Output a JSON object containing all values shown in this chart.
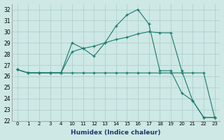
{
  "xlabel": "Humidex (Indice chaleur)",
  "background_color": "#cde8e5",
  "grid_color": "#aaccca",
  "line_color": "#1a7a6e",
  "ylim": [
    22,
    32.5
  ],
  "ytick_vals": [
    22,
    23,
    24,
    25,
    26,
    27,
    28,
    29,
    30,
    31,
    32
  ],
  "xtick_labels": [
    "0",
    "1",
    "2",
    "3",
    "4",
    "10",
    "11",
    "12",
    "13",
    "14",
    "15",
    "16",
    "17",
    "18",
    "19",
    "20",
    "21",
    "22",
    "23"
  ],
  "series": [
    {
      "xi": [
        0,
        1,
        2,
        3,
        4,
        5,
        6,
        7,
        8,
        9,
        10,
        11,
        12,
        13,
        14,
        15,
        16,
        17,
        18
      ],
      "y": [
        26.6,
        26.3,
        26.3,
        26.3,
        26.3,
        29.0,
        28.5,
        27.8,
        29.0,
        30.5,
        31.5,
        32.0,
        30.7,
        26.5,
        26.5,
        24.5,
        23.8,
        22.3,
        22.3
      ]
    },
    {
      "xi": [
        0,
        1,
        2,
        3,
        4,
        5,
        6,
        7,
        8,
        9,
        10,
        11,
        12,
        13,
        14,
        15,
        16,
        17,
        18
      ],
      "y": [
        26.6,
        26.3,
        26.3,
        26.3,
        26.3,
        26.3,
        26.3,
        26.3,
        26.3,
        26.3,
        26.3,
        26.3,
        26.3,
        26.3,
        26.3,
        26.3,
        26.3,
        26.3,
        22.3
      ]
    },
    {
      "xi": [
        0,
        1,
        2,
        3,
        4,
        5,
        6,
        7,
        8,
        9,
        10,
        11,
        12,
        13,
        14,
        15,
        16,
        17,
        18
      ],
      "y": [
        26.6,
        26.3,
        26.3,
        26.3,
        26.3,
        28.2,
        28.5,
        28.7,
        29.0,
        29.3,
        29.5,
        29.8,
        30.0,
        29.9,
        29.9,
        26.5,
        23.8,
        22.3,
        22.3
      ]
    }
  ]
}
